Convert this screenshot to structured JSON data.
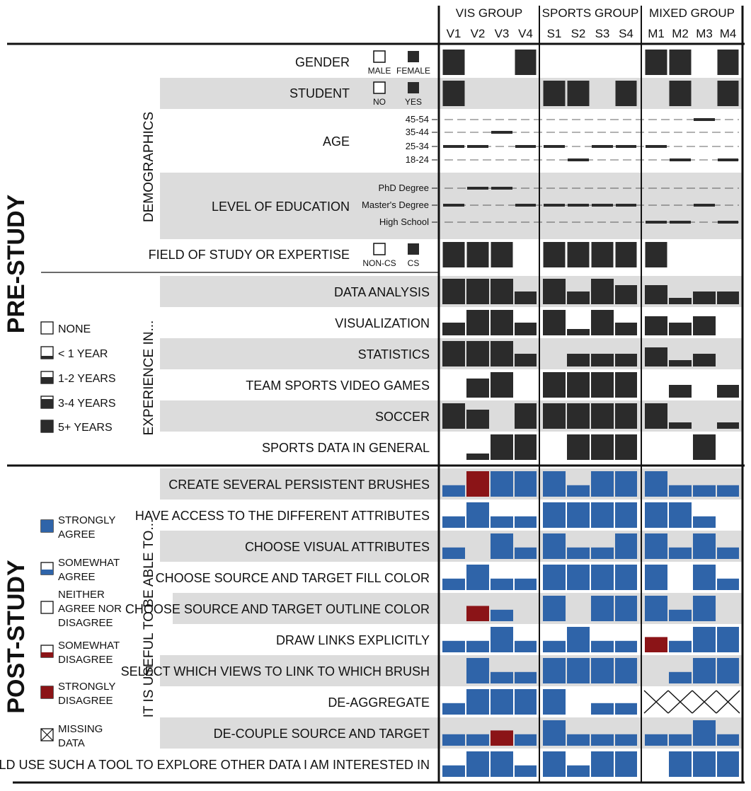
{
  "chart_data": {
    "type": "heatmap",
    "groups": [
      {
        "label": "VIS GROUP",
        "participants": [
          "V1",
          "V2",
          "V3",
          "V4"
        ]
      },
      {
        "label": "SPORTS GROUP",
        "participants": [
          "S1",
          "S2",
          "S3",
          "S4"
        ]
      },
      {
        "label": "MIXED GROUP",
        "participants": [
          "M1",
          "M2",
          "M3",
          "M4"
        ]
      }
    ],
    "sections": {
      "pre": "PRE-STUDY",
      "demographics": "DEMOGRAPHICS",
      "experience": "EXPERIENCE IN...",
      "post": "POST-STUDY",
      "useful": "IT IS USEFUL TO BE ABLE TO..."
    },
    "experience_legend": [
      "NONE",
      "< 1 YEAR",
      "1-2 YEARS",
      "3-4 YEARS",
      "5+ YEARS"
    ],
    "agreement_legend": [
      {
        "lines": [
          "STRONGLY",
          "AGREE"
        ],
        "level": 4
      },
      {
        "lines": [
          "SOMEWHAT",
          "AGREE"
        ],
        "level": 3
      },
      {
        "lines": [
          "NEITHER",
          "AGREE NOR",
          "DISAGREE"
        ],
        "level": 2
      },
      {
        "lines": [
          "SOMEWHAT",
          "DISAGREE"
        ],
        "level": 1
      },
      {
        "lines": [
          "STRONGLY",
          "DISAGREE"
        ],
        "level": 0
      },
      {
        "lines": [
          "MISSING",
          "DATA"
        ],
        "level": null
      }
    ],
    "colors": {
      "dark": "#2b2b2b",
      "agree": "#2f64a9",
      "disagree": "#8b1417",
      "band": "#dcdcdc"
    },
    "binary_rows": [
      {
        "label": "GENDER",
        "options": [
          "MALE",
          "FEMALE"
        ],
        "values": [
          1,
          0,
          0,
          1,
          0,
          0,
          0,
          0,
          1,
          1,
          0,
          1
        ]
      },
      {
        "label": "STUDENT",
        "options": [
          "NO",
          "YES"
        ],
        "values": [
          1,
          0,
          0,
          0,
          1,
          1,
          0,
          1,
          0,
          1,
          0,
          1
        ]
      },
      {
        "label": "FIELD OF STUDY OR EXPERTISE",
        "options": [
          "NON-CS",
          "CS"
        ],
        "values": [
          1,
          1,
          1,
          0,
          1,
          1,
          1,
          1,
          1,
          0,
          0,
          0
        ]
      }
    ],
    "age": {
      "label": "AGE",
      "levels": [
        "45-54",
        "35-44",
        "25-34",
        "18-24"
      ],
      "values": [
        "25-34",
        "25-34",
        "35-44",
        "25-34",
        "25-34",
        "18-24",
        "25-34",
        "25-34",
        "25-34",
        "18-24",
        "45-54",
        "18-24"
      ]
    },
    "education": {
      "label": "LEVEL OF EDUCATION",
      "levels": [
        "PhD Degree",
        "Master's Degree",
        "High School"
      ],
      "values": [
        "Master's Degree",
        "PhD Degree",
        "PhD Degree",
        "Master's Degree",
        "Master's Degree",
        "Master's Degree",
        "Master's Degree",
        "Master's Degree",
        "High School",
        "High School",
        "Master's Degree",
        "High School"
      ]
    },
    "experience_rows": [
      {
        "label": "DATA ANALYSIS",
        "values": [
          4,
          4,
          4,
          2,
          4,
          2,
          4,
          3,
          3,
          1,
          2,
          2
        ]
      },
      {
        "label": "VISUALIZATION",
        "values": [
          2,
          4,
          4,
          2,
          4,
          1,
          4,
          2,
          3,
          2,
          3,
          0
        ]
      },
      {
        "label": "STATISTICS",
        "values": [
          4,
          4,
          4,
          2,
          0,
          2,
          2,
          2,
          3,
          1,
          2,
          0
        ]
      },
      {
        "label": "TEAM SPORTS VIDEO GAMES",
        "values": [
          0,
          3,
          4,
          0,
          4,
          4,
          4,
          4,
          0,
          2,
          0,
          2
        ]
      },
      {
        "label": "SOCCER",
        "values": [
          4,
          3,
          0,
          4,
          4,
          4,
          4,
          4,
          4,
          1,
          0,
          1
        ]
      },
      {
        "label": "SPORTS DATA IN GENERAL",
        "values": [
          0,
          1,
          4,
          4,
          0,
          4,
          4,
          4,
          0,
          0,
          4,
          0
        ]
      }
    ],
    "agreement_rows": [
      {
        "label": "CREATE SEVERAL PERSISTENT BRUSHES",
        "values": [
          3,
          0,
          4,
          4,
          4,
          3,
          4,
          4,
          4,
          3,
          3,
          3
        ]
      },
      {
        "label": "HAVE ACCESS TO THE DIFFERENT ATTRIBUTES",
        "values": [
          3,
          4,
          3,
          3,
          4,
          4,
          4,
          4,
          4,
          4,
          3,
          2
        ]
      },
      {
        "label": "CHOOSE VISUAL ATTRIBUTES",
        "values": [
          3,
          2,
          4,
          3,
          4,
          3,
          3,
          4,
          4,
          3,
          4,
          3
        ]
      },
      {
        "label": "CHOOSE SOURCE AND TARGET FILL COLOR",
        "values": [
          3,
          4,
          3,
          3,
          4,
          4,
          4,
          4,
          4,
          2,
          4,
          3
        ]
      },
      {
        "label": "CHOOSE SOURCE AND TARGET OUTLINE COLOR",
        "values": [
          2,
          1,
          3,
          2,
          4,
          2,
          4,
          4,
          4,
          3,
          4,
          2
        ]
      },
      {
        "label": "DRAW LINKS EXPLICITLY",
        "values": [
          3,
          3,
          4,
          3,
          3,
          4,
          3,
          3,
          1,
          3,
          4,
          4
        ]
      },
      {
        "label": "SELECT WHICH VIEWS TO LINK TO WHICH BRUSH",
        "values": [
          2,
          4,
          3,
          3,
          4,
          4,
          4,
          4,
          2,
          3,
          4,
          4
        ]
      },
      {
        "label": "DE-AGGREGATE",
        "values": [
          3,
          4,
          4,
          4,
          4,
          2,
          3,
          3,
          null,
          null,
          null,
          null
        ]
      },
      {
        "label": "DE-COUPLE SOURCE AND TARGET",
        "values": [
          3,
          3,
          1,
          3,
          4,
          3,
          3,
          3,
          3,
          3,
          4,
          3
        ]
      },
      {
        "label": "I WOULD USE SUCH A TOOL TO EXPLORE OTHER DATA I AM INTERESTED IN",
        "values": [
          3,
          4,
          4,
          3,
          4,
          3,
          4,
          4,
          2,
          4,
          4,
          4
        ]
      }
    ]
  }
}
